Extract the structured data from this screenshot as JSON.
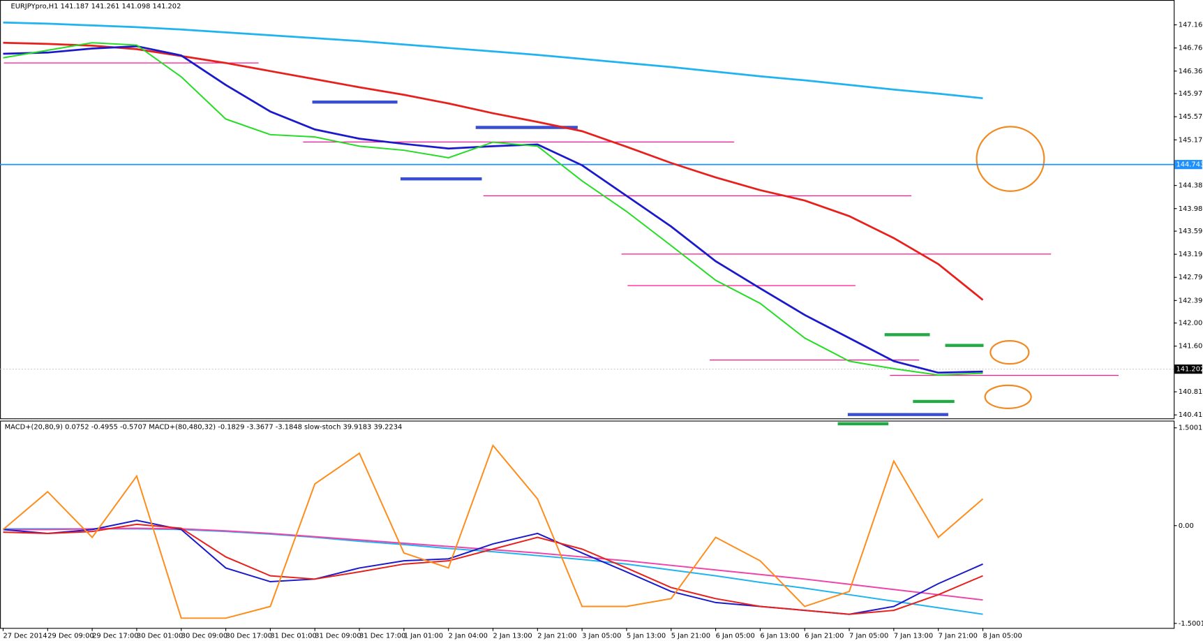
{
  "chart_data": [
    {
      "type": "line",
      "title": "EURJPYpro,H1  141.187 141.261 141.098 141.202",
      "ylim": [
        140.35,
        147.59
      ],
      "yticks": [
        {
          "value": 147.16,
          "label": "147.160"
        },
        {
          "value": 146.76,
          "label": "146.760"
        },
        {
          "value": 146.36,
          "label": "146.360"
        },
        {
          "value": 145.97,
          "label": "145.970"
        },
        {
          "value": 145.57,
          "label": "145.570"
        },
        {
          "value": 145.17,
          "label": "145.170"
        },
        {
          "value": 144.38,
          "label": "144.380"
        },
        {
          "value": 143.98,
          "label": "143.980"
        },
        {
          "value": 143.59,
          "label": "143.590"
        },
        {
          "value": 143.19,
          "label": "143.190"
        },
        {
          "value": 142.79,
          "label": "142.790"
        },
        {
          "value": 142.39,
          "label": "142.390"
        },
        {
          "value": 142,
          "label": "142.000"
        },
        {
          "value": 141.6,
          "label": "141.600"
        },
        {
          "value": 140.81,
          "label": "140.810"
        },
        {
          "value": 140.41,
          "label": "140.410"
        }
      ],
      "levels": [
        {
          "value": 144.743,
          "color": "#1e90ff"
        },
        {
          "value": 141.202,
          "color": "#c0c0c0"
        }
      ],
      "series": [
        {
          "color": "#1fb3f0",
          "values": [
            147.2,
            147.18,
            147.15,
            147.12,
            147.08,
            147.03,
            146.98,
            146.93,
            146.88,
            146.82,
            146.76,
            146.7,
            146.64,
            146.57,
            146.5,
            146.43,
            146.35,
            146.27,
            146.2,
            146.12,
            146.04,
            145.97,
            145.89
          ]
        },
        {
          "color": "#e8201c",
          "values": [
            146.85,
            146.83,
            146.8,
            146.74,
            146.62,
            146.5,
            146.36,
            146.22,
            146.08,
            145.95,
            145.8,
            145.63,
            145.48,
            145.32,
            145.05,
            144.77,
            144.52,
            144.3,
            144.12,
            143.85,
            143.47,
            143.02,
            142.4
          ]
        },
        {
          "color": "#1a1acc",
          "values": [
            146.66,
            146.68,
            146.75,
            146.79,
            146.63,
            146.12,
            145.66,
            145.35,
            145.19,
            145.1,
            145.02,
            145.06,
            145.09,
            144.73,
            144.2,
            143.67,
            143.07,
            142.6,
            142.14,
            141.74,
            141.34,
            141.14,
            141.16
          ]
        },
        {
          "color": "#22dd22",
          "values": [
            146.59,
            146.72,
            146.85,
            146.81,
            146.26,
            145.53,
            145.26,
            145.22,
            145.06,
            144.99,
            144.86,
            145.13,
            145.06,
            144.46,
            143.93,
            143.34,
            142.74,
            142.34,
            141.74,
            141.34,
            141.21,
            141.1,
            141.13
          ]
        }
      ]
    },
    {
      "type": "line",
      "title": "MACD+(20,80,9) 0.0752 -0.4955 -0.5707  MACD+(80,480,32) -0.1829 -3.3677 -3.1848  slow-stoch 39.9183 39.2234",
      "categories": [
        "27 Dec 2014",
        "29 Dec 09:00",
        "29 Dec 17:00",
        "30 Dec 01:00",
        "30 Dec 09:00",
        "30 Dec 17:00",
        "31 Dec 01:00",
        "31 Dec 09:00",
        "31 Dec 17:00",
        "1 Jan 01:00",
        "2 Jan 04:00",
        "2 Jan 13:00",
        "2 Jan 21:00",
        "3 Jan 05:00",
        "5 Jan 13:00",
        "5 Jan 21:00",
        "6 Jan 05:00",
        "6 Jan 13:00",
        "6 Jan 21:00",
        "7 Jan 05:00",
        "7 Jan 13:00",
        "7 Jan 21:00",
        "8 Jan 05:00"
      ],
      "ylim": [
        -1.57,
        1.61
      ],
      "yticks": [
        1.5001,
        {
          "value": 0,
          "label": "0.00"
        },
        -1.5001
      ],
      "series": [
        {
          "color": "#1fb3f0",
          "values": [
            -0.05,
            -0.05,
            -0.05,
            -0.05,
            -0.06,
            -0.09,
            -0.13,
            -0.18,
            -0.24,
            -0.29,
            -0.35,
            -0.4,
            -0.46,
            -0.52,
            -0.59,
            -0.68,
            -0.77,
            -0.87,
            -0.96,
            -1.06,
            -1.16,
            -1.26,
            -1.36
          ]
        },
        {
          "color": "#ee44aa",
          "values": [
            -0.06,
            -0.06,
            -0.05,
            -0.04,
            -0.05,
            -0.08,
            -0.12,
            -0.17,
            -0.22,
            -0.27,
            -0.32,
            -0.37,
            -0.42,
            -0.48,
            -0.54,
            -0.61,
            -0.68,
            -0.75,
            -0.82,
            -0.9,
            -0.98,
            -1.06,
            -1.14
          ]
        },
        {
          "color": "#1a1acc",
          "values": [
            -0.06,
            -0.12,
            -0.06,
            0.08,
            -0.06,
            -0.65,
            -0.86,
            -0.82,
            -0.65,
            -0.54,
            -0.51,
            -0.28,
            -0.12,
            -0.42,
            -0.71,
            -1.01,
            -1.18,
            -1.24,
            -1.3,
            -1.36,
            -1.24,
            -0.89,
            -0.59
          ]
        },
        {
          "color": "#e8201c",
          "values": [
            -0.1,
            -0.12,
            -0.09,
            0.02,
            -0.04,
            -0.48,
            -0.77,
            -0.82,
            -0.71,
            -0.59,
            -0.54,
            -0.36,
            -0.18,
            -0.36,
            -0.65,
            -0.95,
            -1.12,
            -1.24,
            -1.3,
            -1.36,
            -1.3,
            -1.06,
            -0.77
          ]
        },
        {
          "color": "#ff8c1a",
          "values": [
            -0.06,
            0.52,
            -0.18,
            0.76,
            -1.42,
            -1.42,
            -1.24,
            0.64,
            1.11,
            -0.42,
            -0.65,
            1.23,
            0.41,
            -1.24,
            -1.24,
            -1.12,
            -0.18,
            -0.54,
            -1.24,
            -1.01,
            0.99,
            -0.18,
            0.41
          ]
        }
      ]
    }
  ]
}
